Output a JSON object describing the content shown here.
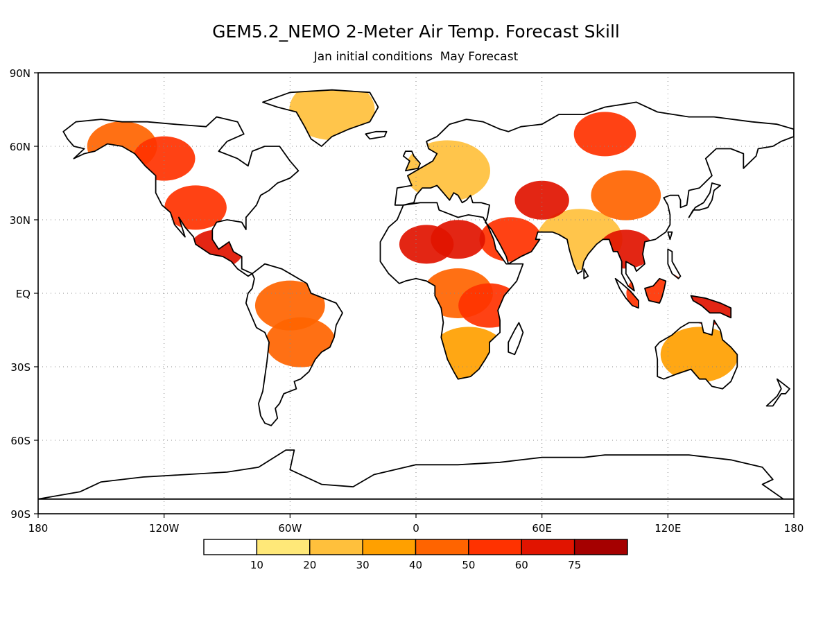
{
  "title": "GEM5.2_NEMO 2-Meter Air Temp. Forecast Skill",
  "subtitle": "Jan initial conditions  May Forecast",
  "axes": {
    "lat_ticks": [
      "90N",
      "60N",
      "30N",
      "EQ",
      "30S",
      "60S",
      "90S"
    ],
    "lon_ticks": [
      "180",
      "120W",
      "60W",
      "0",
      "60E",
      "120E",
      "180"
    ]
  },
  "colorbar": {
    "labels": [
      "10",
      "20",
      "30",
      "40",
      "50",
      "60",
      "75"
    ],
    "colors": [
      "#ffffff",
      "#ffe878",
      "#ffc03c",
      "#ffa000",
      "#ff6400",
      "#ff3200",
      "#e11400",
      "#a50000"
    ]
  },
  "chart_data": {
    "type": "heatmap",
    "title": "GEM5.2_NEMO 2-Meter Air Temp. Forecast Skill",
    "subtitle": "Jan initial conditions  May Forecast",
    "xlabel": "",
    "ylabel": "",
    "x_range": [
      -180,
      180
    ],
    "y_range": [
      -90,
      90
    ],
    "x_ticks": [
      "180",
      "120W",
      "60W",
      "0",
      "60E",
      "120E",
      "180"
    ],
    "y_ticks": [
      "90N",
      "60N",
      "30N",
      "EQ",
      "30S",
      "60S",
      "90S"
    ],
    "levels": [
      10,
      20,
      30,
      40,
      50,
      60,
      75
    ],
    "grid": true,
    "skill_regions": [
      {
        "region": "Alaska / Yukon",
        "lon": -140,
        "lat": 60,
        "level": 40
      },
      {
        "region": "Western Canada",
        "lon": -120,
        "lat": 55,
        "level": 50
      },
      {
        "region": "US Southwest / Great Plains",
        "lon": -105,
        "lat": 35,
        "level": 50
      },
      {
        "region": "Mexico / Central America",
        "lon": -95,
        "lat": 18,
        "level": 60
      },
      {
        "region": "Greenland",
        "lon": -40,
        "lat": 75,
        "level": 20
      },
      {
        "region": "Amazon Basin",
        "lon": -60,
        "lat": -5,
        "level": 40
      },
      {
        "region": "Central South America",
        "lon": -55,
        "lat": -20,
        "level": 40
      },
      {
        "region": "Sahara / Sahel",
        "lon": 5,
        "lat": 20,
        "level": 60
      },
      {
        "region": "Eastern Sahara",
        "lon": 20,
        "lat": 22,
        "level": 60
      },
      {
        "region": "Central Africa",
        "lon": 20,
        "lat": 0,
        "level": 40
      },
      {
        "region": "East Africa",
        "lon": 35,
        "lat": -5,
        "level": 50
      },
      {
        "region": "Southern Africa",
        "lon": 25,
        "lat": -25,
        "level": 30
      },
      {
        "region": "Arabian Peninsula",
        "lon": 45,
        "lat": 22,
        "level": 50
      },
      {
        "region": "Central Asia",
        "lon": 60,
        "lat": 38,
        "level": 60
      },
      {
        "region": "Northern Siberia",
        "lon": 90,
        "lat": 65,
        "level": 50
      },
      {
        "region": "Mongolia / China",
        "lon": 100,
        "lat": 40,
        "level": 40
      },
      {
        "region": "Indochina",
        "lon": 100,
        "lat": 18,
        "level": 60
      },
      {
        "region": "Indonesia / Borneo",
        "lon": 115,
        "lat": 0,
        "level": 50
      },
      {
        "region": "New Guinea",
        "lon": 140,
        "lat": -5,
        "level": 60
      },
      {
        "region": "Australia",
        "lon": 135,
        "lat": -25,
        "level": 30
      },
      {
        "region": "Europe",
        "lon": 15,
        "lat": 50,
        "level": 20
      },
      {
        "region": "India",
        "lon": 78,
        "lat": 22,
        "level": 20
      }
    ]
  }
}
